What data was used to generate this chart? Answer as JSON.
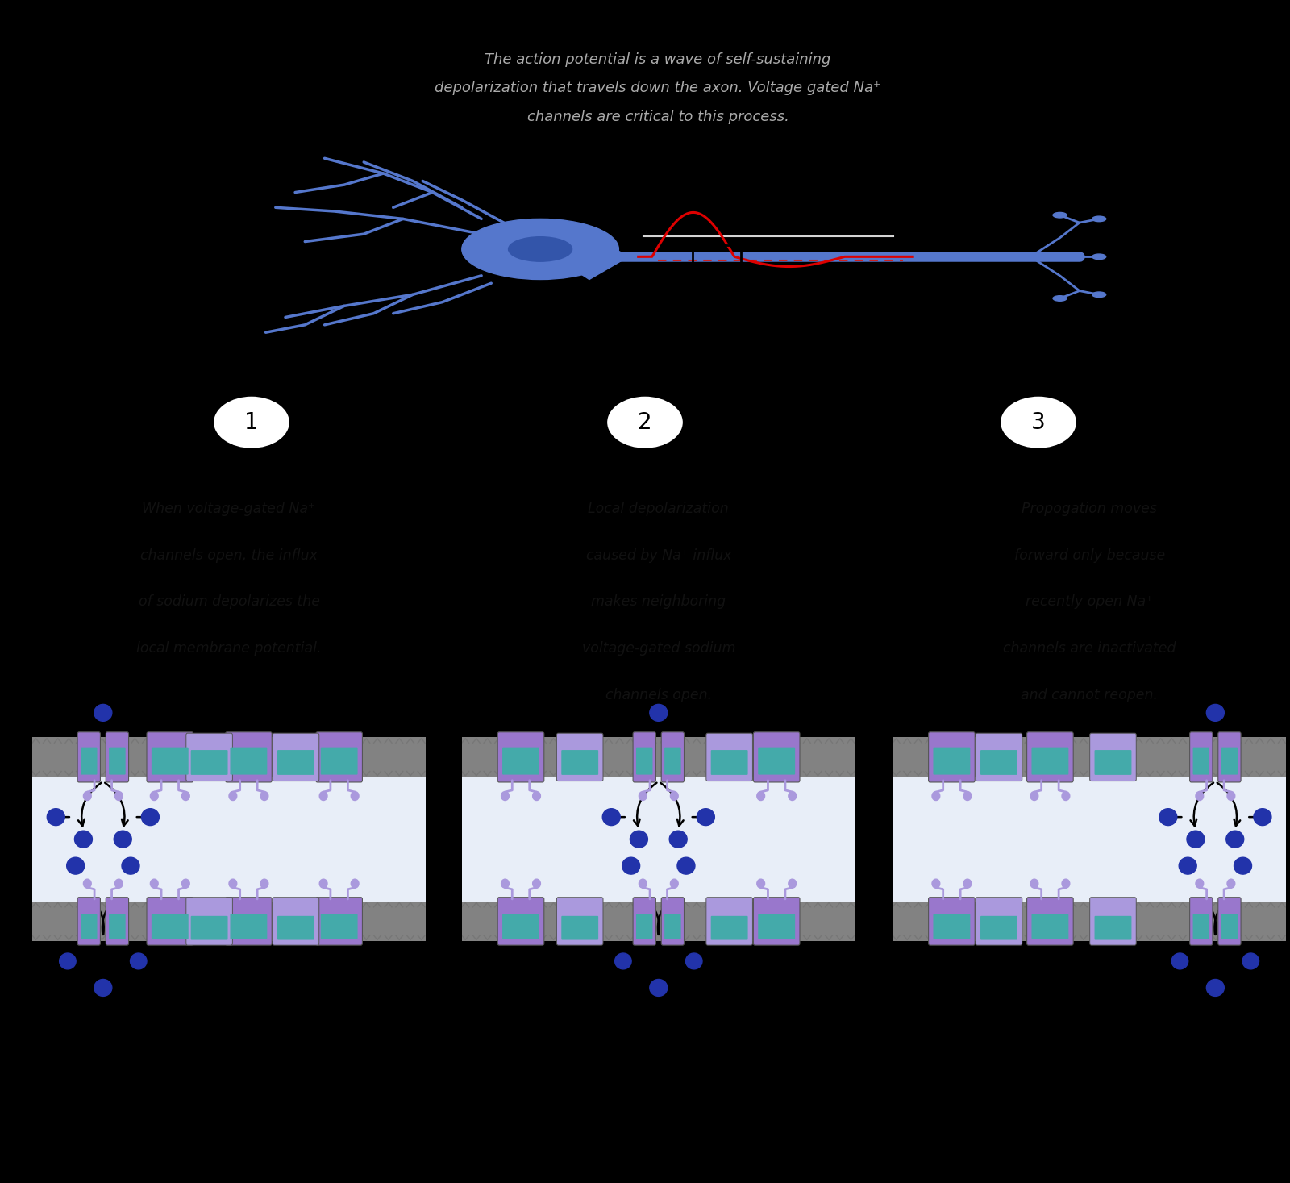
{
  "bg_color": "#000000",
  "panel_bg": "#ffffff",
  "top_box_bg": "#1c1c1c",
  "title_text_line1": "The action potential is a wave of self-sustaining",
  "title_text_line2": "depolarization that travels down the axon. Voltage gated Na⁺",
  "title_text_line3": "channels are critical to this process.",
  "title_color": "#aaaaaa",
  "neuron_body_color": "#5577cc",
  "neuron_dark_color": "#3355aa",
  "axon_color": "#5577cc",
  "ap_wave_color": "#dd0000",
  "ap_baseline_color": "#cc2222",
  "purple_channel": "#9977cc",
  "teal_channel": "#44aaaa",
  "light_purple": "#aa99dd",
  "sodium_color": "#2233aa",
  "sodium_dark": "#1a1a7a",
  "panel1_text_line1": "When voltage-gated Na⁺",
  "panel1_text_line2": "channels open, the influx",
  "panel1_text_line3": "of sodium depolarizes the",
  "panel1_text_line4": "local membrane potential.",
  "panel2_text_line1": "Local depolarization",
  "panel2_text_line2": "caused by Na⁺ influx",
  "panel2_text_line3": "makes neighboring",
  "panel2_text_line4": "voltage-gated sodium",
  "panel2_text_line5": "channels open.",
  "panel3_text_line1": "Propogation moves",
  "panel3_text_line2": "forward only because",
  "panel3_text_line3": "recently open Na⁺",
  "panel3_text_line4": "channels are inactivated",
  "panel3_text_line5": "and cannot reopen.",
  "circle_labels": [
    "1",
    "2",
    "3"
  ],
  "border_color": "#111111",
  "membrane_gray": "#888888",
  "membrane_dark_gray": "#555555",
  "interior_bg": "#e8eef8"
}
